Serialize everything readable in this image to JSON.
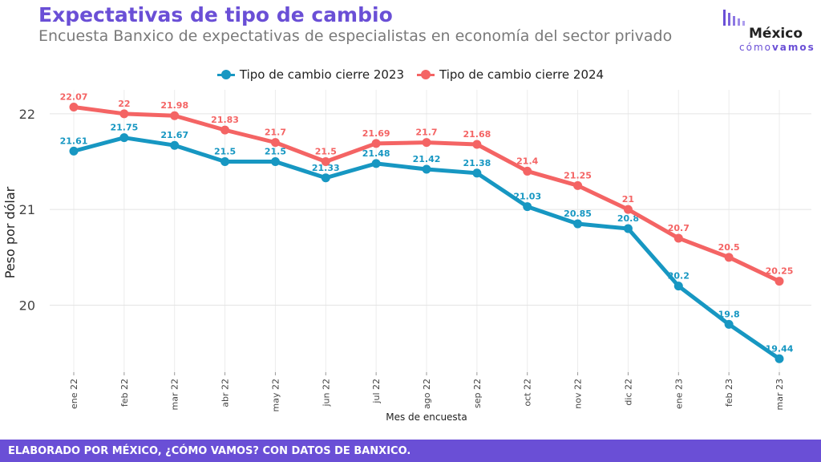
{
  "header": {
    "title": "Expectativas de tipo de cambio",
    "subtitle": "Encuesta Banxico de expectativas de especialistas en economía del sector privado"
  },
  "logo": {
    "name": "México",
    "sub_prefix": "cómo",
    "sub_bold": "vamos"
  },
  "footer": {
    "text": "ELABORADO POR MÉXICO, ¿CÓMO VAMOS? CON DATOS DE BANXICO."
  },
  "colors": {
    "accent": "#6a4fd6",
    "series_2023": "#1797c2",
    "series_2024": "#f46464"
  },
  "chart_data": {
    "type": "line",
    "xlabel": "Mes de encuesta",
    "ylabel": "Peso por dólar",
    "ylim": [
      19.3,
      22.25
    ],
    "yticks": [
      20,
      21,
      22
    ],
    "grid": true,
    "legend": "top",
    "categories": [
      "ene 22",
      "feb 22",
      "mar 22",
      "abr 22",
      "may 22",
      "jun 22",
      "jul 22",
      "ago 22",
      "sep 22",
      "oct 22",
      "nov 22",
      "dic 22",
      "ene 23",
      "feb 23",
      "mar 23"
    ],
    "series": [
      {
        "name": "Tipo de cambio cierre 2023",
        "color": "#1797c2",
        "values": [
          21.61,
          21.75,
          21.67,
          21.5,
          21.5,
          21.33,
          21.48,
          21.42,
          21.38,
          21.03,
          20.85,
          20.8,
          20.2,
          19.8,
          19.44
        ]
      },
      {
        "name": "Tipo de cambio cierre 2024",
        "color": "#f46464",
        "values": [
          22.07,
          22,
          21.98,
          21.83,
          21.7,
          21.5,
          21.69,
          21.7,
          21.68,
          21.4,
          21.25,
          21,
          20.7,
          20.5,
          20.25
        ]
      }
    ]
  }
}
